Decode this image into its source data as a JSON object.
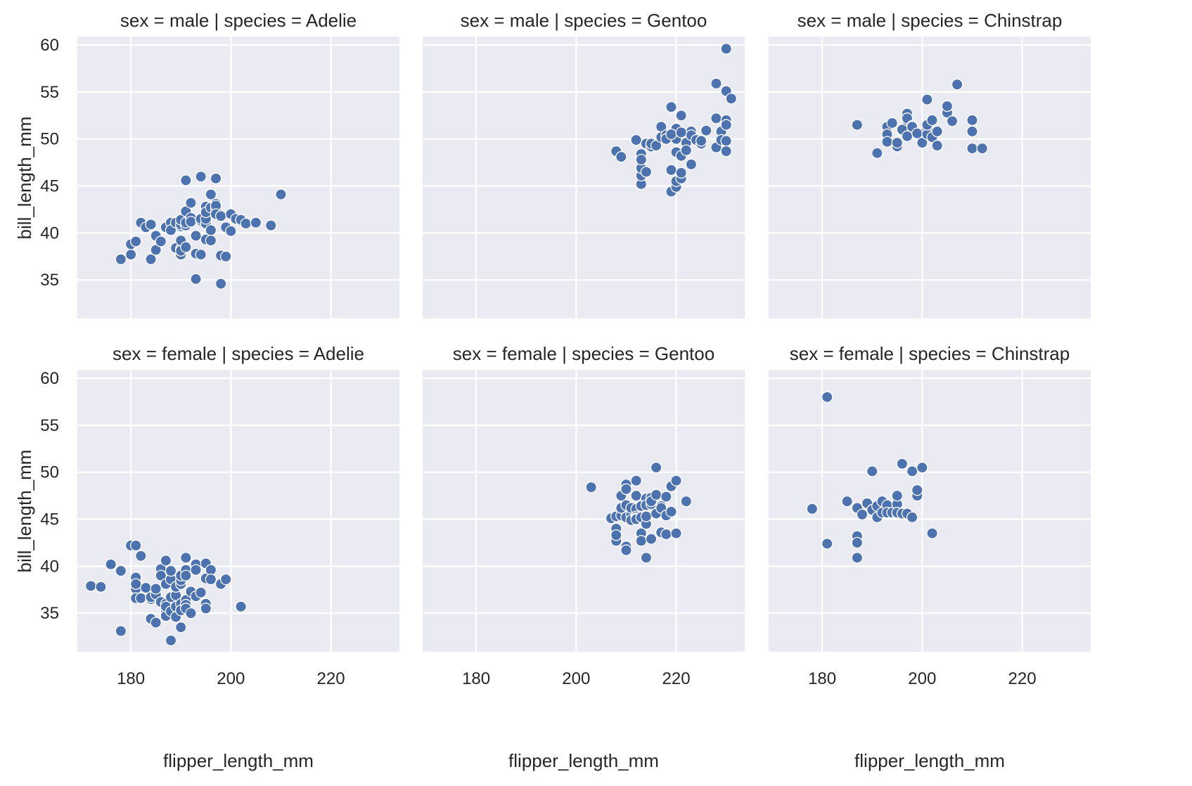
{
  "chart_data": {
    "type": "scatter",
    "layout": "facet-grid",
    "rows_variable": "sex",
    "cols_variable": "species",
    "xlabel": "flipper_length_mm",
    "ylabel": "bill_length_mm",
    "xlim": [
      169.3,
      233.7
    ],
    "ylim": [
      30.9,
      60.9
    ],
    "xticks": [
      180,
      200,
      220
    ],
    "yticks": [
      35,
      40,
      45,
      50,
      55,
      60
    ],
    "grid": true,
    "marker_color": "#4c72b0",
    "background_color": "#eaeaf2",
    "panels": [
      {
        "title": "sex = male | species = Adelie",
        "row": 0,
        "col": 0,
        "x": [
          178,
          180,
          180,
          181,
          182,
          183,
          184,
          184,
          185,
          185,
          186,
          187,
          187,
          188,
          188,
          189,
          189,
          190,
          190,
          190,
          190,
          190,
          190,
          190,
          191,
          191,
          191,
          191,
          192,
          192,
          192,
          193,
          193,
          193,
          194,
          194,
          194,
          195,
          195,
          195,
          195,
          195,
          196,
          196,
          196,
          196,
          197,
          197,
          197,
          197,
          198,
          198,
          198,
          199,
          199,
          200,
          200,
          201,
          202,
          203,
          205,
          208,
          210,
          191,
          194,
          197
        ],
        "y": [
          37.2,
          37.7,
          38.8,
          39.1,
          41.1,
          40.6,
          37.2,
          40.9,
          38.2,
          39.7,
          39.1,
          40.6,
          40.6,
          41.1,
          40.3,
          41.1,
          38.4,
          37.7,
          38.3,
          40.7,
          39.2,
          38.1,
          40.9,
          41.4,
          40.8,
          42.3,
          38.5,
          41.1,
          43.2,
          41.6,
          41.2,
          37.8,
          39.7,
          35.1,
          41.3,
          41.5,
          37.7,
          39.3,
          42.8,
          41.0,
          41.5,
          42.2,
          44.1,
          42.7,
          40.3,
          39.2,
          42.5,
          43.1,
          42.9,
          42.0,
          41.8,
          37.6,
          34.6,
          37.5,
          40.6,
          42.0,
          40.2,
          41.5,
          41.4,
          41.0,
          41.1,
          40.8,
          44.1,
          45.6,
          46.0,
          45.8
        ]
      },
      {
        "title": "sex = male | species = Gentoo",
        "row": 0,
        "col": 1,
        "x": [
          208,
          209,
          212,
          213,
          213,
          213,
          213,
          213,
          214,
          214,
          215,
          215,
          215,
          216,
          217,
          217,
          218,
          218,
          219,
          219,
          219,
          220,
          220,
          220,
          220,
          220,
          221,
          221,
          221,
          221,
          222,
          222,
          223,
          223,
          223,
          224,
          225,
          225,
          226,
          228,
          228,
          228,
          229,
          229,
          230,
          230,
          230,
          230,
          230,
          230,
          231,
          219,
          221
        ],
        "y": [
          48.7,
          48.1,
          49.9,
          48.4,
          45.2,
          46.1,
          46.9,
          47.8,
          46.5,
          49.5,
          49.2,
          49.5,
          49.5,
          49.3,
          51.3,
          50.2,
          50.4,
          50.0,
          53.4,
          46.7,
          44.4,
          50.0,
          51.1,
          48.6,
          44.9,
          45.5,
          45.8,
          46.4,
          48.2,
          52.5,
          49.6,
          48.8,
          47.3,
          50.8,
          50.4,
          49.9,
          49.5,
          49.8,
          50.9,
          55.9,
          52.2,
          49.1,
          50.8,
          49.9,
          59.6,
          55.1,
          52.0,
          51.5,
          49.8,
          48.7,
          54.3,
          50.5,
          50.7
        ]
      },
      {
        "title": "sex = male | species = Chinstrap",
        "row": 0,
        "col": 2,
        "x": [
          187,
          191,
          193,
          193,
          193,
          194,
          195,
          195,
          196,
          196,
          196,
          197,
          197,
          197,
          197,
          198,
          198,
          199,
          200,
          201,
          201,
          201,
          201,
          202,
          202,
          203,
          203,
          205,
          205,
          205,
          206,
          207,
          210,
          210,
          210,
          212
        ],
        "y": [
          51.5,
          48.5,
          51.3,
          50.5,
          49.7,
          51.7,
          49.2,
          49.6,
          50.8,
          50.9,
          51.0,
          52.0,
          52.7,
          50.3,
          52.2,
          51.4,
          51.3,
          50.6,
          49.6,
          54.2,
          51.0,
          50.5,
          51.5,
          52.0,
          50.2,
          49.3,
          50.8,
          52.8,
          53.5,
          53.5,
          51.9,
          55.8,
          52.0,
          50.8,
          49.0,
          49.0
        ]
      },
      {
        "title": "sex = female | species = Adelie",
        "row": 1,
        "col": 0,
        "x": [
          172,
          174,
          176,
          178,
          178,
          180,
          181,
          181,
          181,
          181,
          182,
          182,
          183,
          184,
          184,
          184,
          185,
          185,
          185,
          186,
          186,
          186,
          186,
          187,
          187,
          187,
          187,
          187,
          187,
          188,
          188,
          188,
          188,
          189,
          189,
          189,
          189,
          190,
          190,
          190,
          190,
          190,
          190,
          191,
          191,
          191,
          191,
          191,
          191,
          192,
          192,
          192,
          193,
          193,
          193,
          194,
          195,
          195,
          195,
          195,
          196,
          196,
          198,
          199,
          202,
          188,
          181
        ],
        "y": [
          37.9,
          37.8,
          40.2,
          39.5,
          33.1,
          42.2,
          37.6,
          36.6,
          38.8,
          38.1,
          36.6,
          41.1,
          37.7,
          36.5,
          34.4,
          36.7,
          37.0,
          37.6,
          34.0,
          39.6,
          36.2,
          39.7,
          39.0,
          35.1,
          34.7,
          38.1,
          40.6,
          36.0,
          35.7,
          36.7,
          35.2,
          38.6,
          39.5,
          36.9,
          34.6,
          35.7,
          37.8,
          38.1,
          38.5,
          36.0,
          33.5,
          35.3,
          39.0,
          40.9,
          39.6,
          36.4,
          35.9,
          35.5,
          39.0,
          37.3,
          35.0,
          37.3,
          36.8,
          40.2,
          39.6,
          37.2,
          40.3,
          36.0,
          35.5,
          38.7,
          39.6,
          38.6,
          38.1,
          38.6,
          35.7,
          32.1,
          42.2
        ]
      },
      {
        "title": "sex = female | species = Gentoo",
        "row": 1,
        "col": 1,
        "x": [
          203,
          207,
          208,
          208,
          208,
          208,
          208,
          209,
          209,
          209,
          210,
          210,
          210,
          210,
          210,
          210,
          211,
          211,
          211,
          212,
          212,
          212,
          212,
          212,
          212,
          213,
          213,
          213,
          213,
          214,
          214,
          214,
          214,
          214,
          215,
          215,
          215,
          215,
          215,
          216,
          216,
          216,
          217,
          217,
          217,
          218,
          218,
          218,
          219,
          219,
          220,
          220,
          222
        ],
        "y": [
          48.4,
          45.1,
          45.3,
          43.2,
          44.0,
          42.7,
          43.3,
          45.4,
          46.2,
          47.5,
          45.2,
          46.5,
          48.7,
          48.2,
          42.1,
          41.7,
          45.5,
          46.2,
          44.9,
          46.1,
          45.3,
          45.1,
          47.5,
          49.1,
          45.0,
          46.4,
          43.5,
          42.7,
          45.2,
          47.2,
          46.5,
          44.5,
          45.3,
          40.9,
          47.3,
          46.8,
          46.6,
          42.9,
          46.9,
          45.6,
          47.6,
          50.5,
          46.4,
          46.2,
          43.6,
          47.4,
          45.4,
          43.4,
          45.8,
          48.5,
          49.1,
          43.5,
          46.9
        ]
      },
      {
        "title": "sex = female | species = Chinstrap",
        "row": 1,
        "col": 2,
        "x": [
          178,
          181,
          181,
          185,
          187,
          187,
          187,
          187,
          188,
          189,
          190,
          190,
          191,
          191,
          192,
          192,
          193,
          193,
          194,
          195,
          195,
          195,
          195,
          196,
          196,
          197,
          198,
          198,
          199,
          199,
          200,
          202
        ],
        "y": [
          46.1,
          58.0,
          42.4,
          46.9,
          46.2,
          43.2,
          42.5,
          40.9,
          45.5,
          46.7,
          46.0,
          50.1,
          45.2,
          46.4,
          45.7,
          46.9,
          46.5,
          45.7,
          45.7,
          45.6,
          46.6,
          47.5,
          45.7,
          50.9,
          45.6,
          45.6,
          45.2,
          50.1,
          47.5,
          48.1,
          50.5,
          43.5
        ]
      }
    ]
  }
}
